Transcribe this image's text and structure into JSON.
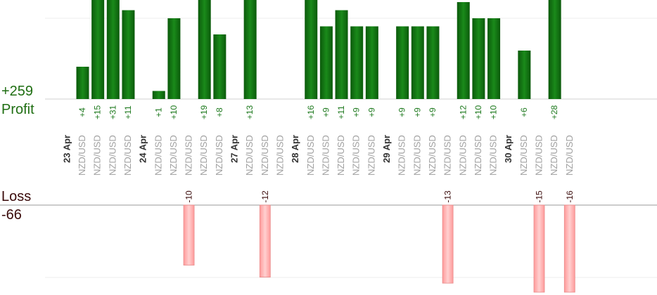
{
  "summary": {
    "profit_total": "+259",
    "profit_label": "Profit",
    "loss_label": "Loss",
    "loss_total": "-66"
  },
  "chart_data": {
    "type": "bar",
    "ylim_profit": [
      0,
      12
    ],
    "ylim_loss": [
      0,
      17
    ],
    "grid": true,
    "colors": {
      "profit": "#0d6a0d",
      "loss": "#ffb0b0"
    },
    "date_groups": [
      {
        "label": "23 Apr",
        "trades": [
          {
            "pair": "NZD/USD",
            "value": 4
          },
          {
            "pair": "NZD/USD",
            "value": 15
          },
          {
            "pair": "NZD/USD",
            "value": 31
          },
          {
            "pair": "NZD/USD",
            "value": 11
          }
        ]
      },
      {
        "label": "24 Apr",
        "trades": [
          {
            "pair": "NZD/USD",
            "value": 1
          },
          {
            "pair": "NZD/USD",
            "value": 10
          },
          {
            "pair": "NZD/USD",
            "value": -10
          },
          {
            "pair": "NZD/USD",
            "value": 19
          },
          {
            "pair": "NZD/USD",
            "value": 8
          }
        ]
      },
      {
        "label": "27 Apr",
        "trades": [
          {
            "pair": "NZD/USD",
            "value": 13
          },
          {
            "pair": "NZD/USD",
            "value": -12
          },
          {
            "pair": "NZD/USD",
            "value": null
          }
        ]
      },
      {
        "label": "28 Apr",
        "trades": [
          {
            "pair": "NZD/USD",
            "value": 16
          },
          {
            "pair": "NZD/USD",
            "value": 9
          },
          {
            "pair": "NZD/USD",
            "value": 11
          },
          {
            "pair": "NZD/USD",
            "value": 9
          },
          {
            "pair": "NZD/USD",
            "value": 9
          }
        ]
      },
      {
        "label": "29 Apr",
        "trades": [
          {
            "pair": "NZD/USD",
            "value": 9
          },
          {
            "pair": "NZD/USD",
            "value": 9
          },
          {
            "pair": "NZD/USD",
            "value": 9
          },
          {
            "pair": "NZD/USD",
            "value": -13
          },
          {
            "pair": "NZD/USD",
            "value": 12
          },
          {
            "pair": "NZD/USD",
            "value": 10
          },
          {
            "pair": "NZD/USD",
            "value": 10
          }
        ]
      },
      {
        "label": "30 Apr",
        "trades": [
          {
            "pair": "NZD/USD",
            "value": 6
          },
          {
            "pair": "NZD/USD",
            "value": -15
          },
          {
            "pair": "NZD/USD",
            "value": 28
          },
          {
            "pair": "NZD/USD",
            "value": -16
          }
        ]
      }
    ]
  }
}
